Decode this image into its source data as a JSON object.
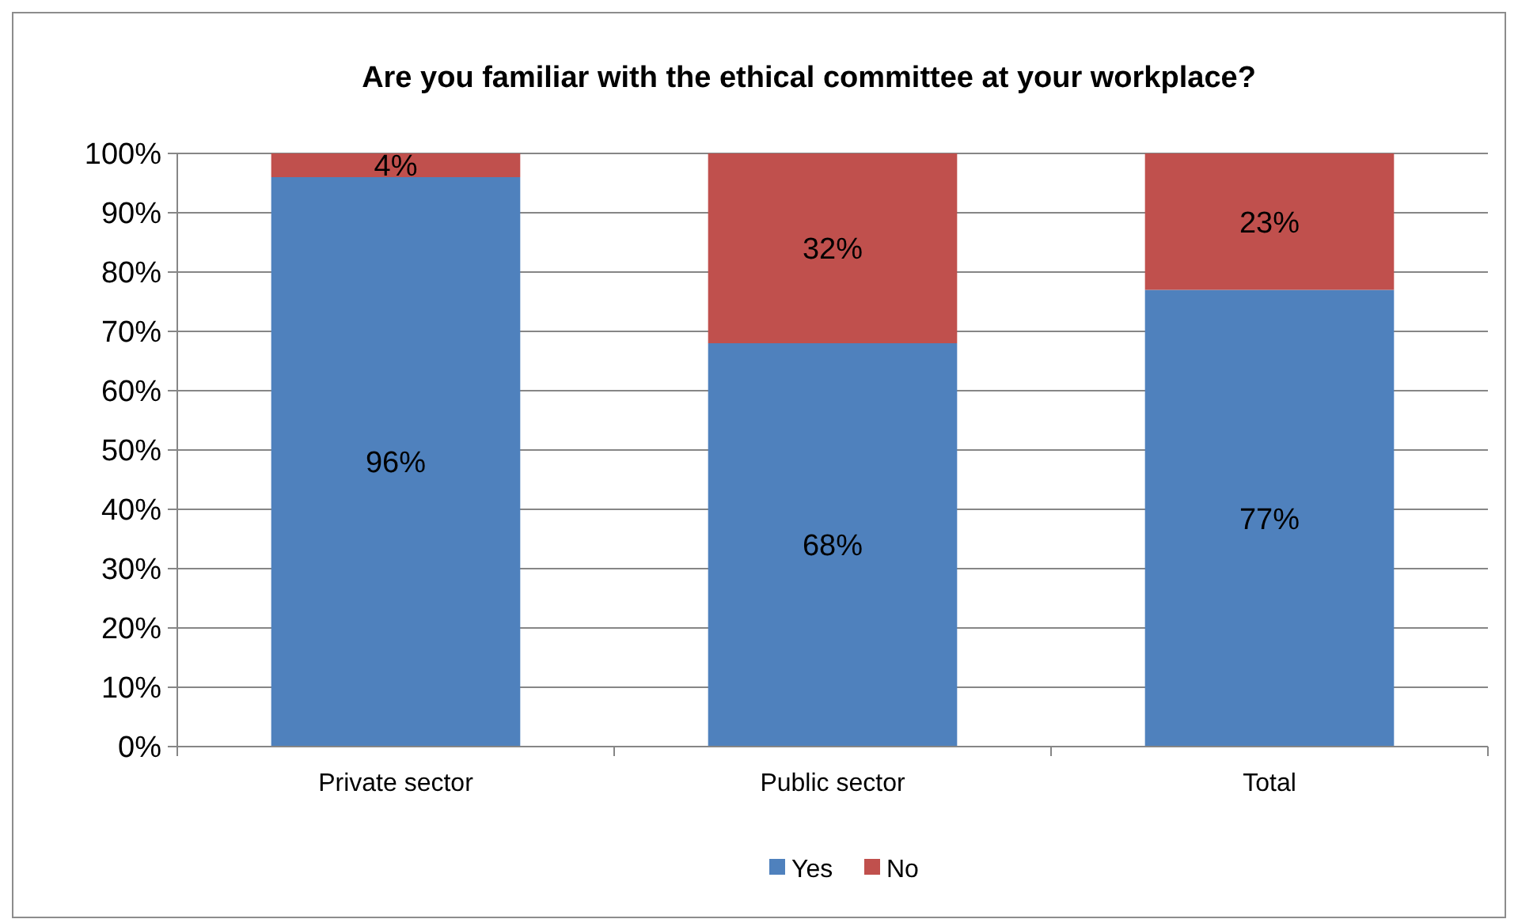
{
  "chart_data": {
    "type": "bar",
    "title": "Are you familiar with the ethical committee at your workplace?",
    "categories": [
      "Private sector",
      "Public sector",
      "Total"
    ],
    "stacked": true,
    "series": [
      {
        "name": "Yes",
        "color": "#4f81bd",
        "values": [
          96,
          68,
          77
        ],
        "value_labels": [
          "96%",
          "68%",
          "77%"
        ]
      },
      {
        "name": "No",
        "color": "#c0504d",
        "values": [
          4,
          32,
          23
        ],
        "value_labels": [
          "4%",
          "32%",
          "23%"
        ]
      }
    ],
    "ylim": [
      0,
      100
    ],
    "yticks": [
      {
        "value": 0,
        "label": "0%"
      },
      {
        "value": 10,
        "label": "10%"
      },
      {
        "value": 20,
        "label": "20%"
      },
      {
        "value": 30,
        "label": "30%"
      },
      {
        "value": 40,
        "label": "40%"
      },
      {
        "value": 50,
        "label": "50%"
      },
      {
        "value": 60,
        "label": "60%"
      },
      {
        "value": 70,
        "label": "70%"
      },
      {
        "value": 80,
        "label": "80%"
      },
      {
        "value": 90,
        "label": "90%"
      },
      {
        "value": 100,
        "label": "100%"
      }
    ],
    "grid": "y",
    "legend": "bottom"
  }
}
